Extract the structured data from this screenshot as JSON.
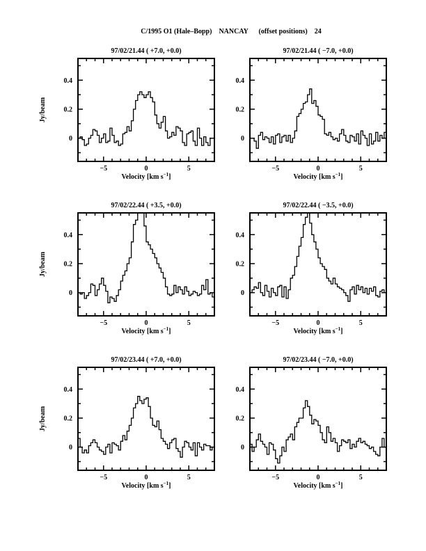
{
  "page_title": "C/1995 O1 (Hale–Bopp)    NANCAY      (offset positions)    24",
  "chart_data": [
    {
      "type": "line",
      "step": true,
      "title": "97/02/21.44  ( +7.0, +0.0)",
      "xlabel": "Velocity [km s",
      "xlabel_sup": "−1",
      "xlabel_end": "]",
      "ylabel": "Jy/beam",
      "xlim": [
        -8,
        8
      ],
      "ylim": [
        -0.16,
        0.55
      ],
      "xticks": [
        "−5",
        "0",
        "5"
      ],
      "xtick_values": [
        -5,
        0,
        5
      ],
      "yticks": [
        "0",
        "0.2",
        "0.4"
      ],
      "ytick_values": [
        0,
        0.2,
        0.4
      ],
      "x_start": -8,
      "x_step": 0.25,
      "values": [
        0.0,
        0.01,
        -0.01,
        -0.05,
        -0.04,
        0.0,
        0.02,
        0.06,
        0.05,
        0.02,
        -0.03,
        0.0,
        0.03,
        -0.03,
        -0.02,
        0.07,
        0.02,
        -0.03,
        -0.02,
        -0.05,
        -0.04,
        0.03,
        0.04,
        0.08,
        0.05,
        0.12,
        0.2,
        0.26,
        0.3,
        0.32,
        0.3,
        0.28,
        0.3,
        0.32,
        0.28,
        0.25,
        0.16,
        0.1,
        0.07,
        0.11,
        0.15,
        0.05,
        0.0,
        0.01,
        0.04,
        0.02,
        0.08,
        0.07,
        0.05,
        -0.03,
        -0.05,
        0.03,
        0.04,
        0.05,
        -0.02,
        -0.05,
        0.07,
        0.0,
        -0.05,
        0.01,
        -0.03,
        -0.05,
        0.0,
        0.0
      ]
    },
    {
      "type": "line",
      "step": true,
      "title": "97/02/21.44  ( −7.0, +0.0)",
      "xlabel": "Velocity [km s",
      "xlabel_sup": "−1",
      "xlabel_end": "]",
      "ylabel": "",
      "xlim": [
        -8,
        8
      ],
      "ylim": [
        -0.16,
        0.55
      ],
      "xticks": [
        "−5",
        "0",
        "5"
      ],
      "xtick_values": [
        -5,
        0,
        5
      ],
      "yticks": [
        "0",
        "0.2",
        "0.4"
      ],
      "ytick_values": [
        0,
        0.2,
        0.4
      ],
      "x_start": -8,
      "x_step": 0.25,
      "values": [
        0.0,
        0.0,
        -0.02,
        -0.07,
        0.02,
        0.04,
        -0.01,
        0.01,
        0.0,
        -0.03,
        0.01,
        -0.04,
        0.02,
        0.03,
        -0.03,
        0.01,
        0.02,
        -0.02,
        0.02,
        -0.03,
        0.0,
        0.05,
        0.15,
        0.17,
        0.2,
        0.24,
        0.25,
        0.3,
        0.34,
        0.24,
        0.26,
        0.22,
        0.16,
        0.15,
        0.13,
        0.03,
        0.02,
        0.04,
        0.01,
        -0.01,
        0.0,
        -0.02,
        0.03,
        0.06,
        0.02,
        -0.02,
        -0.03,
        0.02,
        0.01,
        -0.02,
        0.03,
        -0.04,
        0.05,
        0.02,
        0.0,
        -0.05,
        0.03,
        -0.04,
        -0.02,
        0.04,
        -0.02,
        0.02,
        0.0,
        0.04
      ]
    },
    {
      "type": "line",
      "step": true,
      "title": "97/02/22.44  ( +3.5, +0.0)",
      "xlabel": "Velocity [km s",
      "xlabel_sup": "−1",
      "xlabel_end": "]",
      "ylabel": "Jy/beam",
      "xlim": [
        -8,
        8
      ],
      "ylim": [
        -0.16,
        0.55
      ],
      "xticks": [
        "−5",
        "0",
        "5"
      ],
      "xtick_values": [
        -5,
        0,
        5
      ],
      "yticks": [
        "0",
        "0.2",
        "0.4"
      ],
      "ytick_values": [
        0,
        0.2,
        0.4
      ],
      "x_start": -8,
      "x_step": 0.25,
      "values": [
        0.0,
        -0.01,
        0.0,
        -0.04,
        -0.02,
        0.0,
        0.06,
        0.05,
        -0.02,
        0.02,
        0.06,
        0.1,
        0.05,
        0.01,
        -0.07,
        -0.03,
        -0.04,
        -0.06,
        -0.02,
        0.02,
        0.08,
        0.12,
        0.15,
        0.2,
        0.24,
        0.35,
        0.47,
        0.5,
        0.55,
        0.6,
        0.58,
        0.46,
        0.35,
        0.33,
        0.3,
        0.27,
        0.24,
        0.2,
        0.17,
        0.14,
        0.1,
        0.04,
        -0.01,
        -0.02,
        -0.01,
        0.05,
        0.0,
        0.04,
        0.02,
        -0.01,
        0.04,
        0.01,
        -0.02,
        -0.01,
        0.01,
        0.0,
        -0.02,
        -0.01,
        0.05,
        0.02,
        0.09,
        -0.01,
        0.0,
        -0.03
      ]
    },
    {
      "type": "line",
      "step": true,
      "title": "97/02/22.44  ( −3.5, +0.0)",
      "xlabel": "Velocity [km s",
      "xlabel_sup": "−1",
      "xlabel_end": "]",
      "ylabel": "",
      "xlim": [
        -8,
        8
      ],
      "ylim": [
        -0.16,
        0.55
      ],
      "xticks": [
        "−5",
        "0",
        "5"
      ],
      "xtick_values": [
        -5,
        0,
        5
      ],
      "yticks": [
        "0",
        "0.2",
        "0.4"
      ],
      "ytick_values": [
        0,
        0.2,
        0.4
      ],
      "x_start": -8,
      "x_step": 0.25,
      "values": [
        0.0,
        0.02,
        0.04,
        0.03,
        0.07,
        0.0,
        -0.02,
        0.05,
        0.01,
        -0.03,
        0.03,
        0.0,
        -0.02,
        0.04,
        0.05,
        -0.03,
        0.04,
        -0.04,
        0.02,
        0.1,
        0.12,
        0.18,
        0.25,
        0.32,
        0.38,
        0.47,
        0.52,
        0.58,
        0.48,
        0.4,
        0.35,
        0.3,
        0.24,
        0.2,
        0.18,
        0.16,
        0.1,
        0.08,
        0.06,
        0.1,
        0.06,
        0.04,
        0.03,
        0.02,
        0.0,
        -0.02,
        -0.06,
        0.02,
        0.04,
        -0.01,
        0.05,
        0.02,
        0.04,
        0.0,
        0.03,
        -0.01,
        0.03,
        0.01,
        0.04,
        -0.02,
        -0.03,
        0.01,
        0.02,
        0.0
      ]
    },
    {
      "type": "line",
      "step": true,
      "title": "97/02/23.44  ( +7.0, +0.0)",
      "xlabel": "Velocity [km s",
      "xlabel_sup": "−1",
      "xlabel_end": "]",
      "ylabel": "Jy/beam",
      "xlim": [
        -8,
        8
      ],
      "ylim": [
        -0.16,
        0.55
      ],
      "xticks": [
        "−5",
        "0",
        "5"
      ],
      "xtick_values": [
        -5,
        0,
        5
      ],
      "yticks": [
        "0",
        "0.2",
        "0.4"
      ],
      "ytick_values": [
        0,
        0.2,
        0.4
      ],
      "x_start": -8,
      "x_step": 0.25,
      "values": [
        0.06,
        0.0,
        -0.04,
        -0.02,
        -0.04,
        0.01,
        0.03,
        0.05,
        0.03,
        0.0,
        -0.02,
        -0.03,
        -0.05,
        0.0,
        0.02,
        -0.04,
        0.03,
        0.02,
        0.01,
        -0.02,
        0.04,
        0.08,
        0.05,
        0.11,
        0.15,
        0.2,
        0.27,
        0.3,
        0.35,
        0.32,
        0.3,
        0.33,
        0.34,
        0.28,
        0.2,
        0.15,
        0.14,
        0.18,
        0.12,
        0.06,
        0.04,
        0.02,
        -0.01,
        0.03,
        0.05,
        0.06,
        -0.01,
        -0.03,
        -0.07,
        0.0,
        0.04,
        0.03,
        0.0,
        -0.02,
        0.03,
        -0.06,
        0.03,
        0.0,
        -0.02,
        0.02,
        0.01,
        0.01,
        -0.02,
        0.0
      ]
    },
    {
      "type": "line",
      "step": true,
      "title": "97/02/23.44  ( −7.0, +0.0)",
      "xlabel": "Velocity [km s",
      "xlabel_sup": "−1",
      "xlabel_end": "]",
      "ylabel": "",
      "xlim": [
        -8,
        8
      ],
      "ylim": [
        -0.16,
        0.55
      ],
      "xticks": [
        "−5",
        "0",
        "5"
      ],
      "xtick_values": [
        -5,
        0,
        5
      ],
      "yticks": [
        "0",
        "0.2",
        "0.4"
      ],
      "ytick_values": [
        0,
        0.2,
        0.4
      ],
      "x_start": -8,
      "x_step": 0.25,
      "values": [
        0.02,
        -0.03,
        0.0,
        0.05,
        0.09,
        0.04,
        0.02,
        0.0,
        -0.05,
        0.03,
        0.02,
        -0.02,
        -0.08,
        -0.11,
        -0.06,
        0.0,
        -0.03,
        0.05,
        0.07,
        0.09,
        0.05,
        0.14,
        0.17,
        0.2,
        0.2,
        0.27,
        0.32,
        0.28,
        0.22,
        0.16,
        0.19,
        0.18,
        0.15,
        0.1,
        0.05,
        0.03,
        0.14,
        0.1,
        0.04,
        0.06,
        0.03,
        -0.03,
        0.01,
        0.05,
        0.04,
        0.03,
        0.05,
        -0.01,
        0.02,
        0.0,
        0.04,
        0.06,
        0.03,
        0.04,
        0.02,
        0.01,
        -0.01,
        0.0,
        -0.03,
        -0.05,
        -0.06,
        0.0,
        0.06,
        0.0
      ]
    }
  ]
}
